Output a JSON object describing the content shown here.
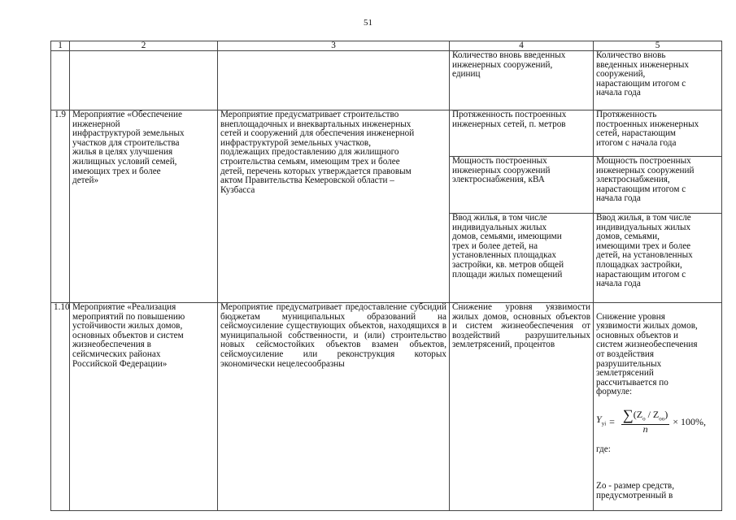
{
  "page_number": "51",
  "table": {
    "headers": [
      "1",
      "2",
      "3",
      "4",
      "5"
    ],
    "continued_row": {
      "col4": "Количество вновь введенных\nинженерных сооружений,\nединиц",
      "col5": "Количество вновь\nвведенных инженерных\nсооружений,\nнарастающим итогом с\nначала года"
    },
    "row_1_9": {
      "num": "1.9",
      "name": "Мероприятие «Обеспечение\nинженерной\nинфраструктурой земельных\nучастков для строительства\nжилья в целях улучшения\nжилищных условий семей,\nимеющих трех и более\nдетей»",
      "description": "Мероприятие предусматривает строительство\nвнеплощадочных и внеквартальных инженерных\nсетей и сооружений для обеспечения инженерной\nинфраструктурой земельных участков,\nподлежащих предоставлению для жилищного\nстроительства семьям, имеющим трех и более\nдетей, перечень которых утверждается правовым\nактом Правительства Кемеровской области –\nКузбасса",
      "indicators": [
        {
          "col4": "Протяженность построенных\nинженерных сетей, п. метров",
          "col5": "Протяженность\nпостроенных инженерных\nсетей, нарастающим\nитогом с начала года"
        },
        {
          "col4": "Мощность построенных\nинженерных сооружений\nэлектроснабжения, кВА",
          "col5": "Мощность построенных\nинженерных сооружений\nэлектроснабжения,\nнарастающим итогом с\nначала года"
        },
        {
          "col4": "Ввод жилья, в том числе\nиндивидуальных жилых\nдомов, семьями, имеющими\nтрех и более детей, на\nустановленных площадках\nзастройки, кв. метров общей\nплощади жилых помещений",
          "col5": "Ввод жилья, в том числе\nиндивидуальных жилых\nдомов, семьями,\nимеющими трех и более\nдетей, на установленных\nплощадках застройки,\nнарастающим итогом с\nначала года"
        }
      ]
    },
    "row_1_10": {
      "num": "1.10",
      "name": "Мероприятие «Реализация\nмероприятий по повышению\nустойчивости жилых домов,\nосновных объектов и систем\nжизнеобеспечения в\nсейсмических районах\nРоссийской Федерации»",
      "description": "Мероприятие предусматривает предоставление субсидий бюджетам муниципальных образований на сейсмоусиление существующих объектов, находящихся в муниципальной собственности, и (или) строительство новых сейсмостойких объектов взамен объектов, сейсмоусиление или реконструкция которых экономически нецелесообразны",
      "col4": "Снижение уровня уязвимости жилых домов, основных объектов и систем жизнеобеспечения от воздействий разрушительных землетрясений, процентов",
      "col5_intro": "Снижение уровня\nуязвимости жилых домов,\nосновных объектов и\nсистем жизнеобеспечения\nот воздействия\nразрушительных\nземлетрясений\nрассчитывается по\nформуле:",
      "formula": {
        "lhs": "Y",
        "lhs_sub": "уi",
        "equals": "=",
        "sigma": "∑",
        "numerator": "(Z",
        "num_sub1": "o",
        "slash": " / Z",
        "num_sub2": "oo",
        "close": ")",
        "denominator": "n",
        "tail": "× 100%,"
      },
      "col5_where": "где:",
      "col5_after": "Zo - размер средств,\nпредусмотренный в"
    }
  }
}
